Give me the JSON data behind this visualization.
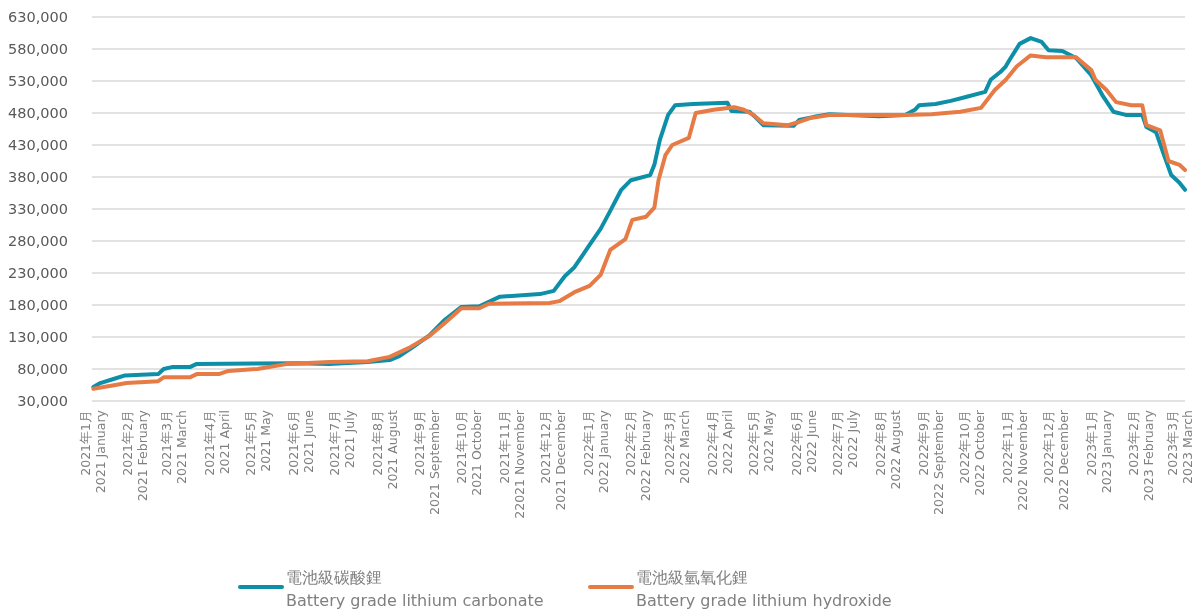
{
  "chart_data": {
    "type": "line",
    "legend": "bottom",
    "grid": "y",
    "line_style": "solid",
    "xlim": [
      "2021-01-01",
      "2023-03-05"
    ],
    "ylim": [
      30000,
      630000
    ],
    "yticks": [
      {
        "value": 30000,
        "label": "30,000"
      },
      {
        "value": 80000,
        "label": "80,000"
      },
      {
        "value": 130000,
        "label": "130,000"
      },
      {
        "value": 180000,
        "label": "180,000"
      },
      {
        "value": 230000,
        "label": "230,000"
      },
      {
        "value": 280000,
        "label": "280,000"
      },
      {
        "value": 330000,
        "label": "330,000"
      },
      {
        "value": 380000,
        "label": "380,000"
      },
      {
        "value": 430000,
        "label": "430,000"
      },
      {
        "value": 480000,
        "label": "480,000"
      },
      {
        "value": 530000,
        "label": "530,000"
      },
      {
        "value": 580000,
        "label": "580,000"
      },
      {
        "value": 630000,
        "label": "630,000"
      }
    ],
    "xticks": [
      {
        "value": "2021-01",
        "label": "2021年1月\n2021 January"
      },
      {
        "value": "2021-02",
        "label": "2021年2月\n2021 February"
      },
      {
        "value": "2021-03",
        "label": "2021年3月\n2021 March"
      },
      {
        "value": "2021-04",
        "label": "2021年4月\n2021 April"
      },
      {
        "value": "2021-05",
        "label": "2021年5月\n2021 May"
      },
      {
        "value": "2021-06",
        "label": "2021年6月\n2021 June"
      },
      {
        "value": "2021-07",
        "label": "2021年7月\n2021 July"
      },
      {
        "value": "2021-08",
        "label": "2021年8月\n2021 August"
      },
      {
        "value": "2021-09",
        "label": "2021年9月\n2021 September"
      },
      {
        "value": "2021-10",
        "label": "2021年10月\n2021 October"
      },
      {
        "value": "2021-11",
        "label": "2021年11月\n22021 November"
      },
      {
        "value": "2021-12",
        "label": "2021年12月\n2021 December"
      },
      {
        "value": "2022-01",
        "label": "2022年1月\n2022 January"
      },
      {
        "value": "2022-02",
        "label": "2022年2月\n2022 February"
      },
      {
        "value": "2022-03",
        "label": "2022年3月\n2022 March"
      },
      {
        "value": "2022-04",
        "label": "2022年4月\n2022 April"
      },
      {
        "value": "2022-05",
        "label": "2022年5月\n2022 May"
      },
      {
        "value": "2022-06",
        "label": "2022年6月\n2022 June"
      },
      {
        "value": "2022-07",
        "label": "2022年7月\n2022 July"
      },
      {
        "value": "2022-08",
        "label": "2022年8月\n2022 August"
      },
      {
        "value": "2022-09",
        "label": "2022年9月\n2022 September"
      },
      {
        "value": "2022-10",
        "label": "2022年10月\n2022 October"
      },
      {
        "value": "2022-11",
        "label": "2022年11月\n2202 November"
      },
      {
        "value": "2022-12",
        "label": "2022年12月\n2022 December"
      },
      {
        "value": "2023-01",
        "label": "2023年1月\n2023 January"
      },
      {
        "value": "2023-02",
        "label": "2023年2月\n2023 February"
      },
      {
        "value": "2023-03",
        "label": "2023年3月\n2023 March"
      }
    ],
    "series": [
      {
        "name": "電池級碳酸鋰\nBattery grade lithium carbonate",
        "color": "#0e8fa8",
        "x": [
          "2021-01-02",
          "2021-01-07",
          "2021-01-16",
          "2021-01-25",
          "2021-02-18",
          "2021-02-22",
          "2021-02-28",
          "2021-03-13",
          "2021-03-18",
          "2021-05-30",
          "2021-06-22",
          "2021-07-20",
          "2021-08-05",
          "2021-08-12",
          "2021-08-21",
          "2021-09-03",
          "2021-09-14",
          "2021-09-26",
          "2021-10-09",
          "2021-10-24",
          "2021-11-22",
          "2021-12-02",
          "2021-12-10",
          "2021-12-17",
          "2021-12-23",
          "2021-12-28",
          "2022-01-05",
          "2022-01-12",
          "2022-01-20",
          "2022-01-27",
          "2022-02-10",
          "2022-02-13",
          "2022-02-17",
          "2022-02-23",
          "2022-02-28",
          "2022-03-13",
          "2022-04-07",
          "2022-04-10",
          "2022-04-23",
          "2022-04-28",
          "2022-05-03",
          "2022-05-25",
          "2022-05-29",
          "2022-06-09",
          "2022-06-20",
          "2022-07-26",
          "2022-08-14",
          "2022-08-21",
          "2022-08-24",
          "2022-09-05",
          "2022-09-16",
          "2022-09-27",
          "2022-10-11",
          "2022-10-15",
          "2022-10-22",
          "2022-10-26",
          "2022-10-29",
          "2022-11-05",
          "2022-11-13",
          "2022-11-21",
          "2022-11-26",
          "2022-12-06",
          "2022-12-16",
          "2022-12-27",
          "2023-01-04",
          "2023-01-12",
          "2023-01-21",
          "2023-02-02",
          "2023-02-05",
          "2023-02-12",
          "2023-02-16",
          "2023-02-23",
          "2023-03-01",
          "2023-03-05"
        ],
        "values": [
          52000,
          58000,
          64000,
          70000,
          72000,
          80000,
          83000,
          83000,
          88000,
          89000,
          88000,
          91000,
          94000,
          100000,
          113000,
          133000,
          157000,
          177000,
          178000,
          193000,
          197000,
          202000,
          225000,
          239000,
          258000,
          274000,
          299000,
          327000,
          360000,
          375000,
          383000,
          399000,
          438000,
          477000,
          492000,
          494000,
          496000,
          483000,
          482000,
          472000,
          461000,
          460000,
          469000,
          474000,
          478000,
          475000,
          477000,
          485000,
          492000,
          494000,
          499000,
          505000,
          513000,
          532000,
          544000,
          553000,
          564000,
          588000,
          597000,
          591000,
          578000,
          577000,
          566000,
          539000,
          508000,
          482000,
          477000,
          477000,
          458000,
          450000,
          425000,
          383000,
          371000,
          360000
        ]
      },
      {
        "name": "電池級氫氧化鋰\nBattery grade lithium hydroxide",
        "color": "#e67b45",
        "x": [
          "2021-01-02",
          "2021-01-18",
          "2021-01-26",
          "2021-02-18",
          "2021-02-22",
          "2021-03-13",
          "2021-03-18",
          "2021-04-03",
          "2021-04-10",
          "2021-05-01",
          "2021-05-23",
          "2021-06-22",
          "2021-07-20",
          "2021-08-05",
          "2021-08-19",
          "2021-09-03",
          "2021-09-14",
          "2021-09-26",
          "2021-10-09",
          "2021-10-16",
          "2021-11-29",
          "2021-12-06",
          "2021-12-17",
          "2021-12-28",
          "2022-01-05",
          "2022-01-12",
          "2022-01-23",
          "2022-01-28",
          "2022-02-07",
          "2022-02-13",
          "2022-02-16",
          "2022-02-21",
          "2022-02-26",
          "2022-03-10",
          "2022-03-15",
          "2022-03-28",
          "2022-04-12",
          "2022-04-19",
          "2022-04-26",
          "2022-05-03",
          "2022-05-21",
          "2022-05-29",
          "2022-06-06",
          "2022-06-20",
          "2022-08-14",
          "2022-09-02",
          "2022-09-23",
          "2022-10-08",
          "2022-10-18",
          "2022-10-26",
          "2022-11-03",
          "2022-11-13",
          "2022-11-24",
          "2022-12-16",
          "2022-12-27",
          "2022-12-30",
          "2023-01-07",
          "2023-01-14",
          "2023-01-25",
          "2023-02-02",
          "2023-02-05",
          "2023-02-15",
          "2023-02-21",
          "2023-03-01",
          "2023-03-05"
        ],
        "values": [
          49000,
          55000,
          58000,
          61000,
          67000,
          67000,
          72000,
          72000,
          77000,
          80000,
          88000,
          91000,
          92000,
          99000,
          113000,
          132000,
          152000,
          175000,
          175000,
          182000,
          183000,
          186000,
          200000,
          210000,
          227000,
          266000,
          283000,
          313000,
          318000,
          332000,
          375000,
          414000,
          430000,
          441000,
          480000,
          485000,
          489000,
          485000,
          477000,
          464000,
          461000,
          466000,
          472000,
          477000,
          477000,
          478000,
          482000,
          488000,
          516000,
          532000,
          553000,
          570000,
          567000,
          567000,
          547000,
          532000,
          516000,
          497000,
          492000,
          492000,
          461000,
          453000,
          405000,
          399000,
          391000
        ]
      }
    ]
  }
}
